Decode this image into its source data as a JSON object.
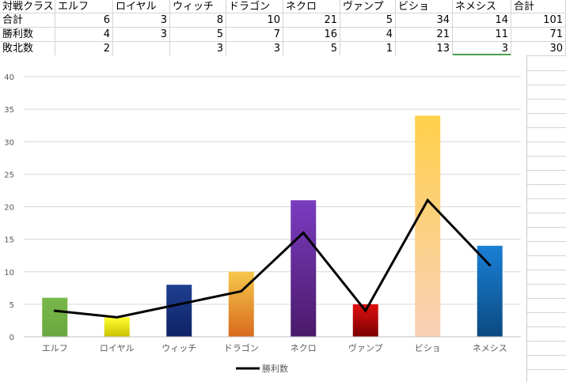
{
  "sheet": {
    "rows": [
      {
        "label": "対戦クラス",
        "cells": [
          "エルフ",
          "ロイヤル",
          "ウィッチ",
          "ドラゴン",
          "ネクロ",
          "ヴァンプ",
          "ビショ",
          "ネメシス",
          "合計"
        ]
      },
      {
        "label": "合計",
        "cells": [
          "6",
          "3",
          "8",
          "10",
          "21",
          "5",
          "34",
          "14",
          "101"
        ]
      },
      {
        "label": "勝利数",
        "cells": [
          "4",
          "3",
          "5",
          "7",
          "16",
          "4",
          "21",
          "11",
          "71"
        ]
      },
      {
        "label": "敗北数",
        "cells": [
          "2",
          "",
          "3",
          "3",
          "5",
          "1",
          "13",
          "3",
          "30"
        ]
      }
    ]
  },
  "chart_data": {
    "type": "bar",
    "categories": [
      "エルフ",
      "ロイヤル",
      "ウィッチ",
      "ドラゴン",
      "ネクロ",
      "ヴァンプ",
      "ビショ",
      "ネメシス"
    ],
    "series": [
      {
        "type": "bar",
        "values": [
          6,
          3,
          8,
          10,
          21,
          5,
          34,
          14
        ]
      },
      {
        "name": "勝利数",
        "type": "line",
        "values": [
          4,
          3,
          5,
          7,
          16,
          4,
          21,
          11
        ]
      }
    ],
    "ylim": [
      0,
      40
    ],
    "yticks": [
      "0",
      "5",
      "10",
      "15",
      "20",
      "25",
      "30",
      "35",
      "40"
    ],
    "grid": true,
    "legend": "bottom",
    "colors": {
      "bars": [
        [
          "#78b84a",
          "#6aa840"
        ],
        [
          "#ffff30",
          "#c9c100"
        ],
        [
          "#1f3f90",
          "#0e2266"
        ],
        [
          "#f6c84a",
          "#d86a1e"
        ],
        [
          "#7a3cc0",
          "#4a1a6a"
        ],
        [
          "#e01010",
          "#7a0000"
        ],
        [
          "#ffd04a",
          "#f9d0b8"
        ],
        [
          "#1a80d6",
          "#0c4a80"
        ]
      ],
      "line": "#000000",
      "grid": "#d9d9d9",
      "axis_text": "#595959"
    }
  }
}
